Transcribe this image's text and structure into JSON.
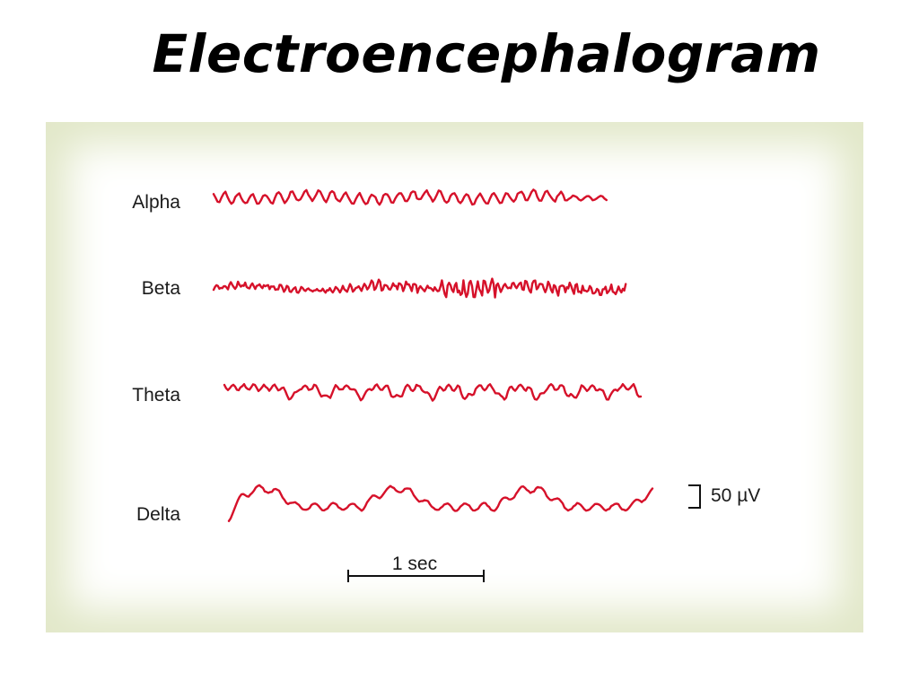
{
  "slide": {
    "title": "Electroencephalogram"
  },
  "figure": {
    "trace_color": "#d6112a",
    "frame_color": "#e2e8c9",
    "waves": [
      {
        "label": "Alpha"
      },
      {
        "label": "Beta"
      },
      {
        "label": "Theta"
      },
      {
        "label": "Delta"
      }
    ],
    "amplitude_scale": "50 µV",
    "time_scale": "1 sec"
  }
}
